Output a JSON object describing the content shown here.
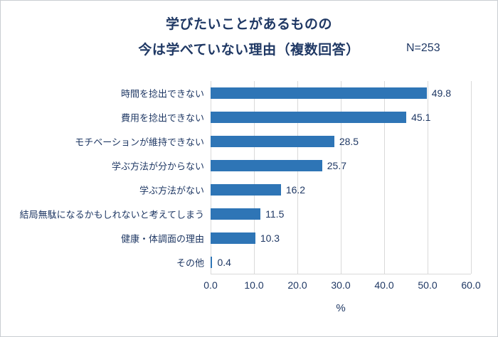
{
  "chart_data": {
    "type": "bar",
    "orientation": "horizontal",
    "title_line1": "学びたいことがあるものの",
    "title_line2": "今は学べていない理由（複数回答）",
    "n_label": "N=253",
    "categories": [
      "時間を捻出できない",
      "費用を捻出できない",
      "モチベーションが維持できない",
      "学ぶ方法が分からない",
      "学ぶ方法がない",
      "結局無駄になるかもしれないと考えてしまう",
      "健康・体調面の理由",
      "その他"
    ],
    "values": [
      49.8,
      45.1,
      28.5,
      25.7,
      16.2,
      11.5,
      10.3,
      0.4
    ],
    "value_labels": [
      "49.8",
      "45.1",
      "28.5",
      "25.7",
      "16.2",
      "11.5",
      "10.3",
      "0.4"
    ],
    "xlabel": "%",
    "xlim": [
      0,
      60
    ],
    "xticks": [
      0,
      10,
      20,
      30,
      40,
      50,
      60
    ],
    "xtick_labels": [
      "0.0",
      "10.0",
      "20.0",
      "30.0",
      "40.0",
      "50.0",
      "60.0"
    ],
    "grid": true,
    "legend": "none",
    "bar_color": "#2E75B6",
    "text_color": "#1F3864",
    "gridline_color": "#D9D9D9"
  }
}
